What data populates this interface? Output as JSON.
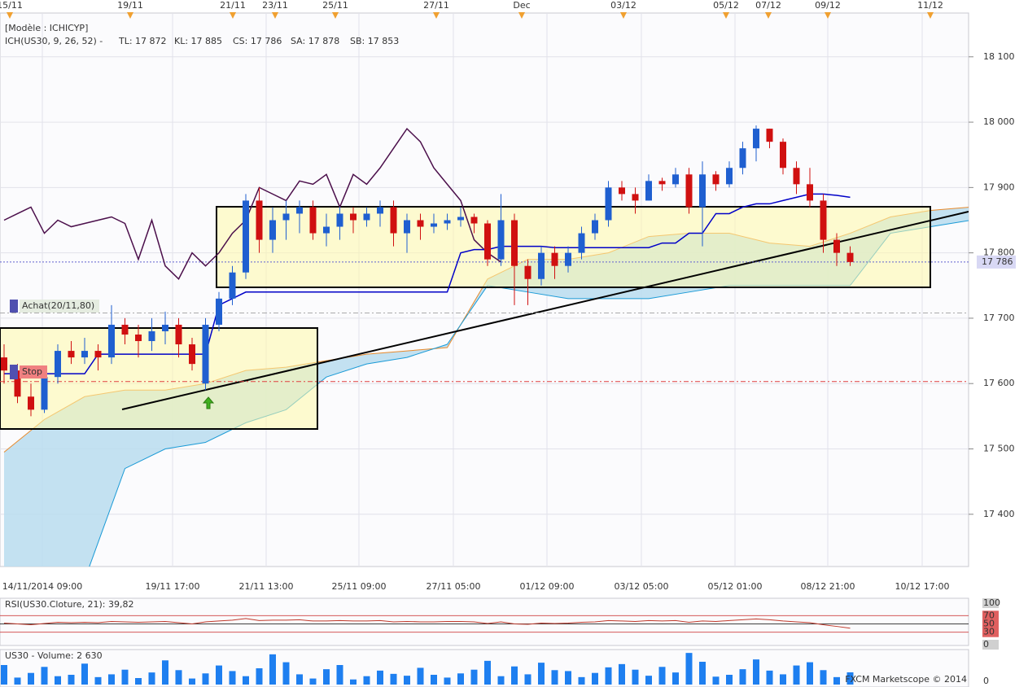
{
  "chart_data": {
    "type": "candlestick",
    "model": "[Modèle : ICHICYP]",
    "indicator": "ICH(US30, 9, 26, 52) -",
    "legend": [
      {
        "text": "TL: 17 872",
        "color": "#cc0000"
      },
      {
        "text": "KL: 17 885",
        "color": "#0000c8"
      },
      {
        "text": "CS: 17 786",
        "color": "#333333"
      },
      {
        "text": "SA: 17 878",
        "color": "#e8892a"
      },
      {
        "text": "SB: 17 853",
        "color": "#1a9ad6"
      }
    ],
    "top_dates": [
      "15/11",
      "19/11",
      "21/11",
      "23/11",
      "25/11",
      "27/11",
      "Dec",
      "03/12",
      "05/12",
      "07/12",
      "09/12",
      "11/12"
    ],
    "time_labels": [
      "14/11/2014 09:00",
      "19/11 17:00",
      "21/11 13:00",
      "25/11 09:00",
      "27/11 05:00",
      "01/12 09:00",
      "03/12 05:00",
      "05/12 01:00",
      "08/12 21:00",
      "10/12 17:00"
    ],
    "up_color": "#1f5fd0",
    "down_color": "#d01010",
    "open": [
      17640,
      17620,
      17580,
      17560,
      17610,
      17650,
      17640,
      17650,
      17640,
      17690,
      17675,
      17665,
      17680,
      17690,
      17660,
      17600,
      17690,
      17730,
      17770,
      17880,
      17820,
      17850,
      17860,
      17870,
      17830,
      17840,
      17860,
      17850,
      17860,
      17870,
      17830,
      17850,
      17840,
      17845,
      17850,
      17855,
      17845,
      17790,
      17850,
      17780,
      17760,
      17800,
      17780,
      17800,
      17830,
      17850,
      17900,
      17890,
      17880,
      17910,
      17905,
      17920,
      17870,
      17920,
      17905,
      17930,
      17960,
      17990,
      17970,
      17930,
      17905,
      17880,
      17820,
      17800
    ],
    "close": [
      17620,
      17580,
      17560,
      17610,
      17650,
      17640,
      17650,
      17640,
      17690,
      17675,
      17665,
      17680,
      17690,
      17660,
      17630,
      17690,
      17730,
      17770,
      17880,
      17820,
      17850,
      17860,
      17870,
      17830,
      17840,
      17860,
      17850,
      17860,
      17870,
      17830,
      17850,
      17840,
      17845,
      17850,
      17855,
      17845,
      17790,
      17850,
      17780,
      17760,
      17800,
      17780,
      17800,
      17830,
      17850,
      17900,
      17890,
      17880,
      17910,
      17905,
      17920,
      17870,
      17920,
      17905,
      17930,
      17960,
      17990,
      17970,
      17930,
      17905,
      17880,
      17820,
      17800,
      17786
    ],
    "high": [
      17660,
      17630,
      17600,
      17620,
      17660,
      17665,
      17670,
      17660,
      17720,
      17700,
      17690,
      17700,
      17710,
      17700,
      17670,
      17700,
      17740,
      17780,
      17890,
      17900,
      17870,
      17880,
      17880,
      17880,
      17860,
      17870,
      17870,
      17870,
      17880,
      17880,
      17860,
      17860,
      17860,
      17860,
      17870,
      17860,
      17850,
      17890,
      17860,
      17790,
      17810,
      17810,
      17810,
      17840,
      17860,
      17910,
      17910,
      17900,
      17920,
      17915,
      17930,
      17930,
      17940,
      17925,
      17940,
      17970,
      17995,
      17990,
      17975,
      17940,
      17930,
      17890,
      17830,
      17810
    ],
    "low": [
      17600,
      17570,
      17550,
      17555,
      17600,
      17630,
      17630,
      17620,
      17630,
      17660,
      17640,
      17650,
      17660,
      17640,
      17620,
      17590,
      17680,
      17720,
      17760,
      17800,
      17800,
      17820,
      17830,
      17820,
      17810,
      17820,
      17830,
      17840,
      17840,
      17810,
      17800,
      17820,
      17830,
      17835,
      17840,
      17830,
      17780,
      17780,
      17720,
      17720,
      17750,
      17760,
      17770,
      17790,
      17820,
      17840,
      17880,
      17860,
      17880,
      17895,
      17900,
      17860,
      17810,
      17895,
      17900,
      17920,
      17940,
      17960,
      17920,
      17890,
      17870,
      17800,
      17780,
      17780
    ],
    "kijun": {
      "color": "#0000c8",
      "values": [
        17615,
        17615,
        17615,
        17615,
        17615,
        17615,
        17615,
        17645,
        17645,
        17645,
        17645,
        17645,
        17645,
        17645,
        17645,
        17645,
        17720,
        17730,
        17740,
        17740,
        17740,
        17740,
        17740,
        17740,
        17740,
        17740,
        17740,
        17740,
        17740,
        17740,
        17740,
        17740,
        17740,
        17740,
        17800,
        17805,
        17805,
        17810,
        17810,
        17810,
        17810,
        17808,
        17808,
        17808,
        17808,
        17808,
        17808,
        17808,
        17808,
        17815,
        17815,
        17830,
        17830,
        17860,
        17860,
        17870,
        17875,
        17875,
        17880,
        17885,
        17890,
        17890,
        17888,
        17885
      ]
    },
    "chikou": {
      "color": "#4b0f4b",
      "values": [
        17850,
        17860,
        17870,
        17830,
        17850,
        17840,
        17845,
        17850,
        17855,
        17845,
        17790,
        17850,
        17780,
        17760,
        17800,
        17780,
        17800,
        17830,
        17850,
        17900,
        17890,
        17880,
        17910,
        17905,
        17920,
        17870,
        17920,
        17905,
        17930,
        17960,
        17990,
        17970,
        17930,
        17905,
        17880,
        17820,
        17800,
        17786
      ]
    },
    "cloud_x": [
      0,
      3,
      6,
      9,
      12,
      15,
      18,
      21,
      24,
      27,
      30,
      33,
      36,
      39,
      42,
      45,
      48,
      51,
      54,
      57,
      60,
      63,
      66,
      69,
      72
    ],
    "span_a": {
      "color": "#e8892a",
      "values": [
        17495,
        17545,
        17580,
        17590,
        17590,
        17600,
        17620,
        17625,
        17635,
        17645,
        17650,
        17655,
        17760,
        17790,
        17790,
        17800,
        17825,
        17830,
        17830,
        17815,
        17810,
        17830,
        17855,
        17865,
        17870
      ]
    },
    "span_b": {
      "color": "#1a9ad6",
      "values": [
        17280,
        17280,
        17300,
        17470,
        17500,
        17510,
        17540,
        17560,
        17610,
        17630,
        17640,
        17660,
        17750,
        17740,
        17730,
        17730,
        17730,
        17740,
        17750,
        17750,
        17750,
        17750,
        17830,
        17840,
        17850
      ]
    },
    "ylim": [
      17320,
      18167
    ],
    "yticks": [
      {
        "value": 17400,
        "label": "17 400"
      },
      {
        "value": 17500,
        "label": "17 500"
      },
      {
        "value": 17600,
        "label": "17 600"
      },
      {
        "value": 17700,
        "label": "17 700"
      },
      {
        "value": 17800,
        "label": "17 800"
      },
      {
        "value": 17900,
        "label": "17 900"
      },
      {
        "value": 18000,
        "label": "18 000"
      },
      {
        "value": 18100,
        "label": "18 100"
      }
    ],
    "last_price": {
      "value": 17786,
      "label": "17 786"
    },
    "levels": [
      {
        "value": 17603,
        "color": "#e04040"
      },
      {
        "value": 17708,
        "color": "#aaaaaa"
      }
    ],
    "annotations": [
      "Achat(20/11,80)",
      "Stop"
    ],
    "rsi": {
      "label": "RSI(US30.Cloture, 21): 39,82",
      "color": "#c0392b",
      "ylim": [
        0,
        100
      ],
      "yticks": [
        100,
        70,
        50,
        30,
        0
      ],
      "values": [
        52,
        50,
        48,
        51,
        54,
        53,
        54,
        53,
        56,
        55,
        54,
        55,
        56,
        53,
        50,
        55,
        57,
        59,
        63,
        58,
        59,
        59,
        60,
        57,
        57,
        58,
        57,
        57,
        58,
        55,
        56,
        55,
        55,
        56,
        56,
        55,
        51,
        55,
        50,
        49,
        52,
        51,
        52,
        54,
        55,
        58,
        57,
        56,
        58,
        57,
        58,
        54,
        57,
        56,
        58,
        60,
        62,
        60,
        57,
        55,
        53,
        48,
        44,
        39.82
      ]
    },
    "volume": {
      "label": "US30 - Volume: 2 630",
      "color": "#1e7ff0",
      "ylim": [
        0,
        7000
      ],
      "yticks": [
        0
      ],
      "values": [
        4200,
        1500,
        2500,
        3800,
        1800,
        2100,
        4500,
        1600,
        2200,
        3200,
        1400,
        2600,
        5200,
        3100,
        1300,
        2400,
        4100,
        2900,
        1800,
        3500,
        6500,
        4800,
        2200,
        1300,
        3300,
        4200,
        1100,
        1800,
        3000,
        2300,
        1900,
        3600,
        2100,
        1500,
        2400,
        3200,
        5100,
        1800,
        3900,
        2200,
        4700,
        3100,
        2900,
        1600,
        2500,
        3700,
        4400,
        3200,
        1900,
        3800,
        2600,
        6800,
        4900,
        1700,
        2100,
        3300,
        5400,
        3000,
        2200,
        4100,
        4800,
        3100,
        1600,
        2630
      ]
    },
    "footer": "FXCM Marketscope © 2014"
  }
}
